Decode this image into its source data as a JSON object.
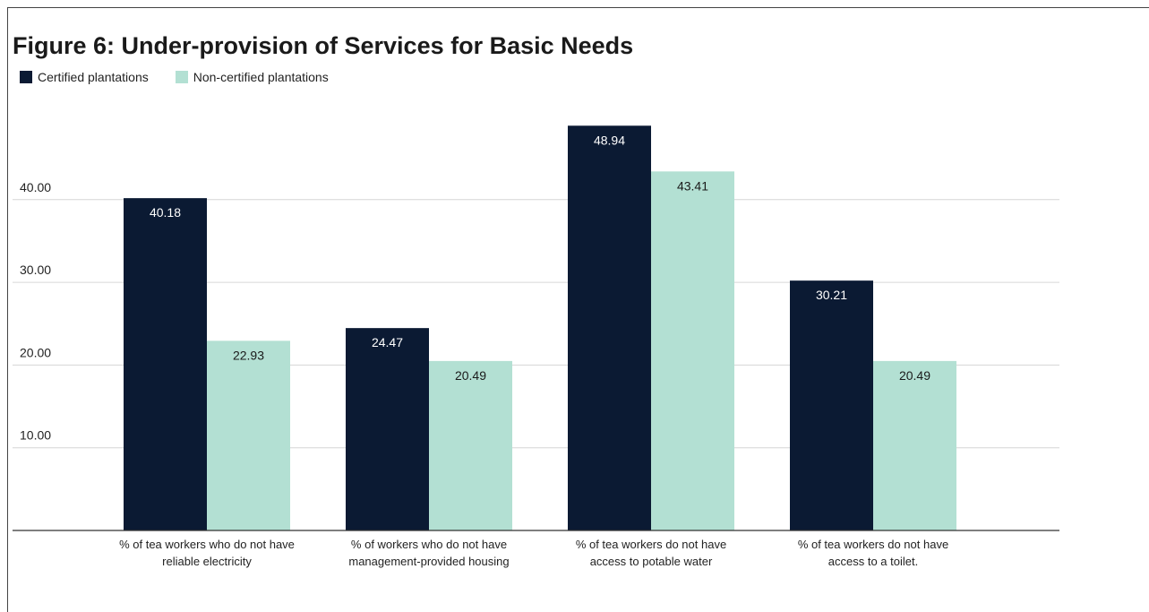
{
  "colors": {
    "certified": "#0b1a33",
    "non_certified": "#b3e0d3",
    "grid": "#d6d6d6",
    "axis": "#333333"
  },
  "chart_data": {
    "type": "bar",
    "title": "Figure 6: Under-provision of Services for Basic Needs",
    "categories": [
      [
        "% of tea workers who do not have",
        "reliable electricity"
      ],
      [
        "% of workers who do not have",
        "management-provided housing"
      ],
      [
        "% of tea workers do not have",
        "access to potable water"
      ],
      [
        "% of tea workers do not have",
        "access to a toilet."
      ]
    ],
    "series": [
      {
        "name": "Certified plantations",
        "values": [
          40.18,
          24.47,
          48.94,
          30.21
        ]
      },
      {
        "name": "Non-certified plantations",
        "values": [
          22.93,
          20.49,
          43.41,
          20.49
        ]
      }
    ],
    "data_labels": [
      [
        "40.18",
        "24.47",
        "48.94",
        "30.21"
      ],
      [
        "22.93",
        "20.49",
        "43.41",
        "20.49"
      ]
    ],
    "yticks": [
      10,
      20,
      30,
      40
    ],
    "ytick_labels": [
      "10.00",
      "20.00",
      "30.00",
      "40.00"
    ],
    "ylim": [
      0,
      50
    ],
    "grid": true,
    "legend_position": "top-left"
  }
}
